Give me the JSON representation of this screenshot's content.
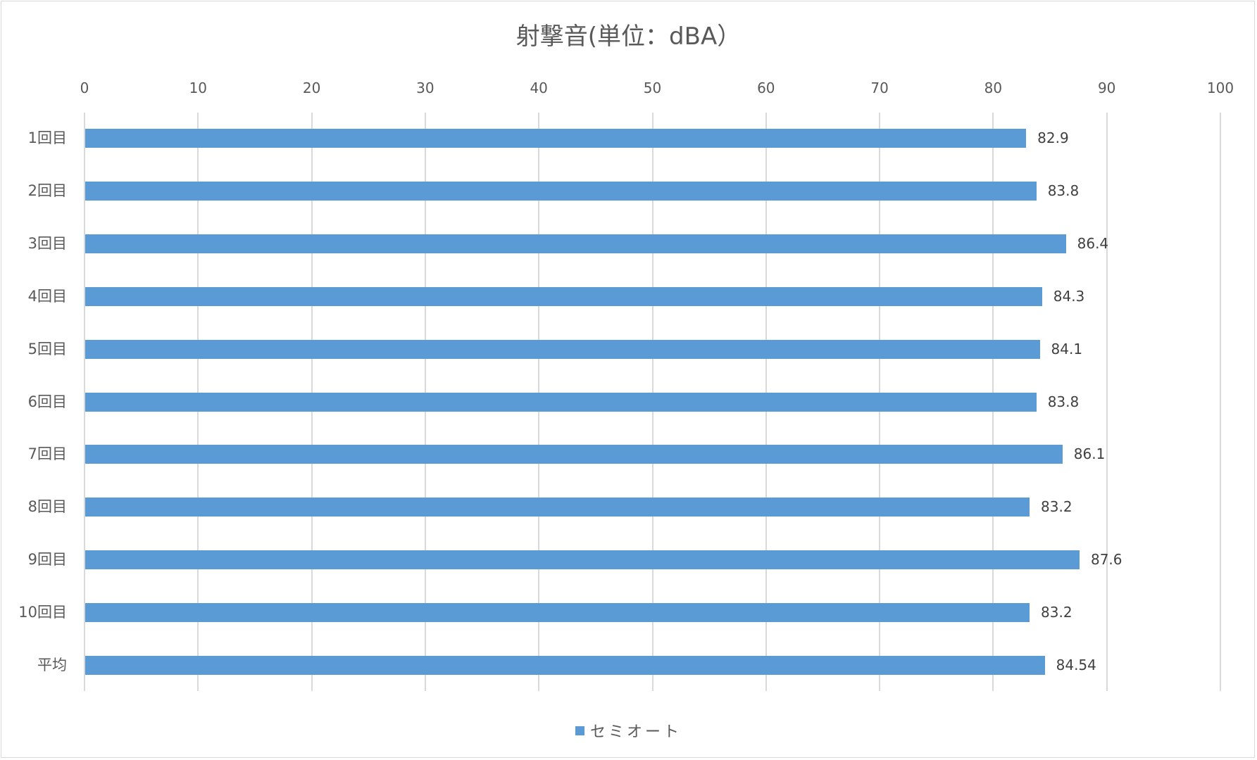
{
  "chart_data": {
    "type": "bar",
    "orientation": "horizontal",
    "title": "射撃音(単位：dBA）",
    "xlabel": "",
    "ylabel": "",
    "xlim": [
      0,
      100
    ],
    "x_ticks": [
      "0",
      "10",
      "20",
      "30",
      "40",
      "50",
      "60",
      "70",
      "80",
      "90",
      "100"
    ],
    "grid": true,
    "legend_position": "bottom",
    "categories": [
      "1回目",
      "2回目",
      "3回目",
      "4回目",
      "5回目",
      "6回目",
      "7回目",
      "8回目",
      "9回目",
      "10回目",
      "平均"
    ],
    "series": [
      {
        "name": "セミオート",
        "color": "#5B9BD5",
        "values": [
          82.9,
          83.8,
          86.4,
          84.3,
          84.1,
          83.8,
          86.1,
          83.2,
          87.6,
          83.2,
          84.54
        ]
      }
    ],
    "value_labels": [
      "82.9",
      "83.8",
      "86.4",
      "84.3",
      "84.1",
      "83.8",
      "86.1",
      "83.2",
      "87.6",
      "83.2",
      "84.54"
    ]
  }
}
